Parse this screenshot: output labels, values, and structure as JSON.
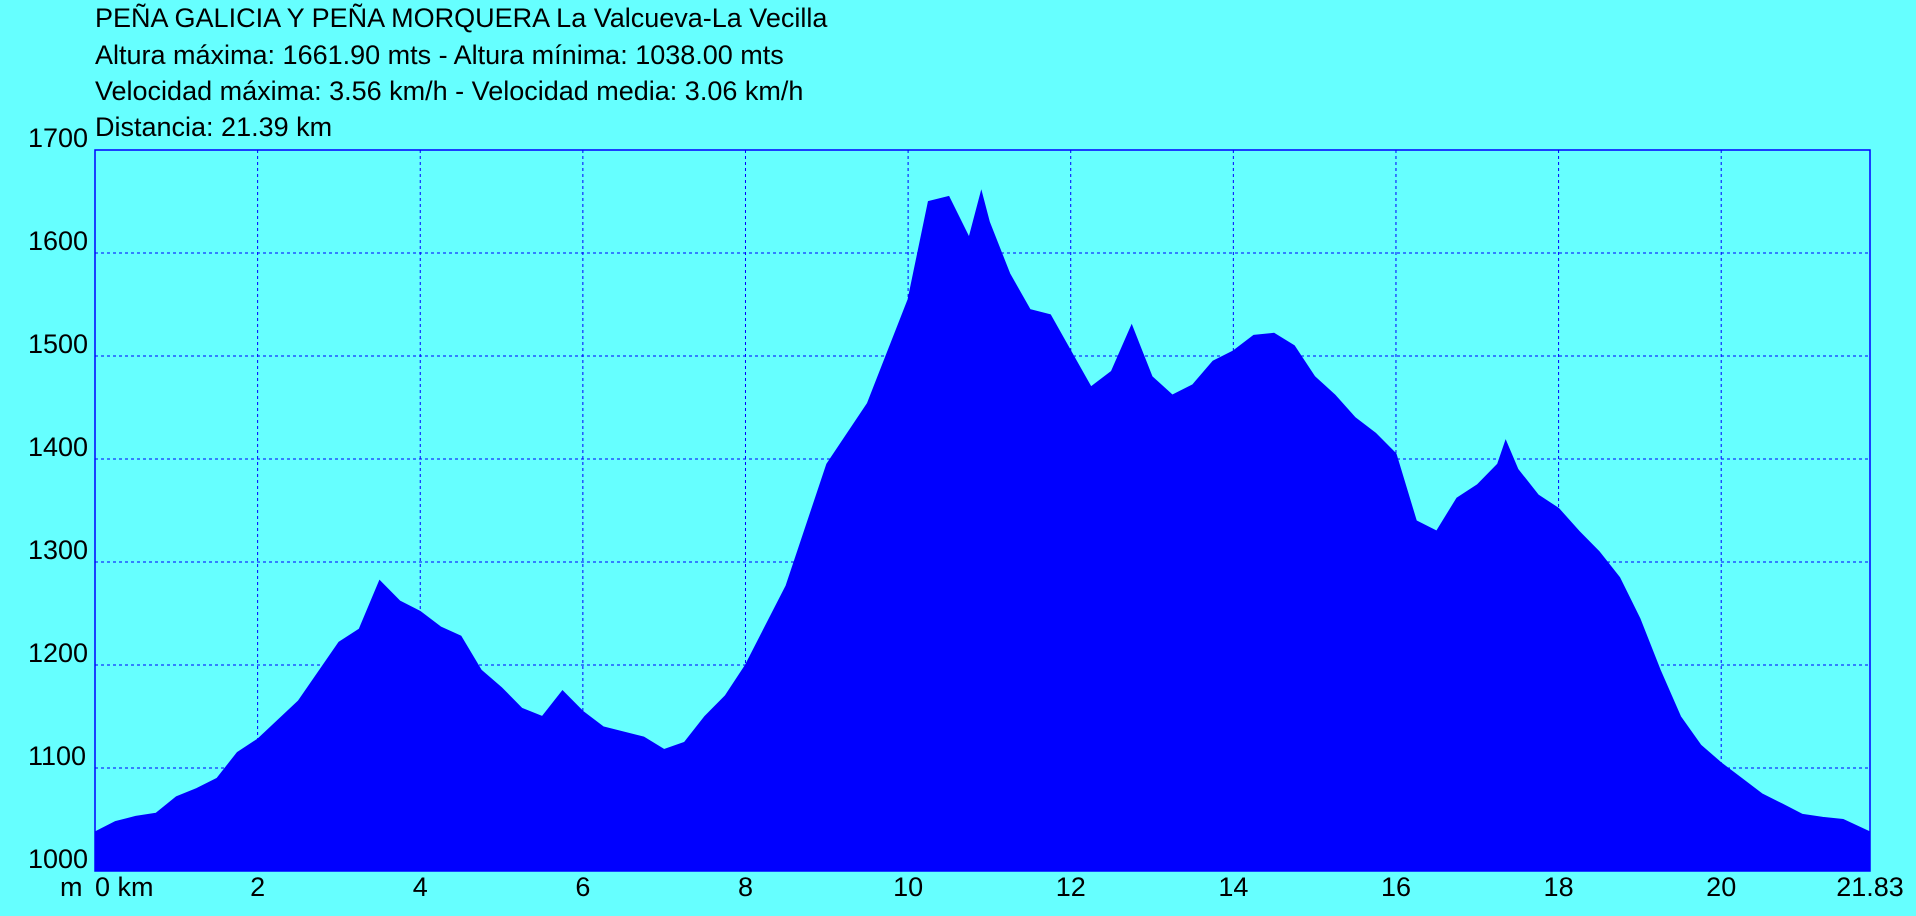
{
  "chart_data": {
    "type": "area",
    "title": "PEÑA GALICIA Y PEÑA MORQUERA La Valcueva-La Vecilla",
    "subtitles": [
      "Altura máxima: 1661.90 mts - Altura mínima: 1038.00 mts",
      "Velocidad máxima: 3.56 km/h - Velocidad media: 3.06 km/h",
      "Distancia: 21.39 km"
    ],
    "y_label": "m",
    "color": "#0000ff",
    "background": "#66ffff",
    "grid": true,
    "xlim": [
      0,
      21.83
    ],
    "xticks": [
      {
        "value": 0,
        "label": "0 km"
      },
      2,
      4,
      6,
      8,
      10,
      12,
      14,
      16,
      18,
      20,
      21.83
    ],
    "ylim": [
      1000,
      1700
    ],
    "yticks": [
      1000,
      1100,
      1200,
      1300,
      1400,
      1500,
      1600,
      1700
    ],
    "x": [
      0,
      0.25,
      0.5,
      0.75,
      1.0,
      1.25,
      1.5,
      1.75,
      2.0,
      2.5,
      3.0,
      3.25,
      3.5,
      3.75,
      4.0,
      4.25,
      4.5,
      4.75,
      5.0,
      5.25,
      5.5,
      5.75,
      6.0,
      6.25,
      6.5,
      6.75,
      7.0,
      7.25,
      7.5,
      7.75,
      8.0,
      8.5,
      9.0,
      9.5,
      10.0,
      10.25,
      10.5,
      10.75,
      10.9,
      11.0,
      11.25,
      11.5,
      11.75,
      12.0,
      12.25,
      12.5,
      12.75,
      13.0,
      13.25,
      13.5,
      13.75,
      14.0,
      14.25,
      14.5,
      14.75,
      15.0,
      15.25,
      15.5,
      15.75,
      16.0,
      16.25,
      16.5,
      16.75,
      17.0,
      17.25,
      17.35,
      17.5,
      17.75,
      18.0,
      18.25,
      18.5,
      18.75,
      19.0,
      19.25,
      19.5,
      19.75,
      20.0,
      20.25,
      20.5,
      20.75,
      21.0,
      21.25,
      21.5,
      21.83
    ],
    "values": [
      1038,
      1048,
      1053,
      1056,
      1072,
      1080,
      1090,
      1115,
      1128,
      1165,
      1222,
      1235,
      1282,
      1262,
      1252,
      1237,
      1228,
      1195,
      1178,
      1158,
      1150,
      1175,
      1155,
      1140,
      1135,
      1130,
      1118,
      1125,
      1150,
      1170,
      1200,
      1277,
      1395,
      1454,
      1555,
      1650,
      1655,
      1615,
      1660,
      1630,
      1580,
      1545,
      1540,
      1505,
      1470,
      1485,
      1530,
      1480,
      1462,
      1472,
      1495,
      1505,
      1520,
      1522,
      1510,
      1480,
      1462,
      1440,
      1425,
      1405,
      1340,
      1330,
      1362,
      1375,
      1395,
      1418,
      1390,
      1365,
      1352,
      1330,
      1310,
      1285,
      1245,
      1195,
      1150,
      1122,
      1105,
      1090,
      1075,
      1065,
      1055,
      1052,
      1050,
      1038
    ]
  }
}
